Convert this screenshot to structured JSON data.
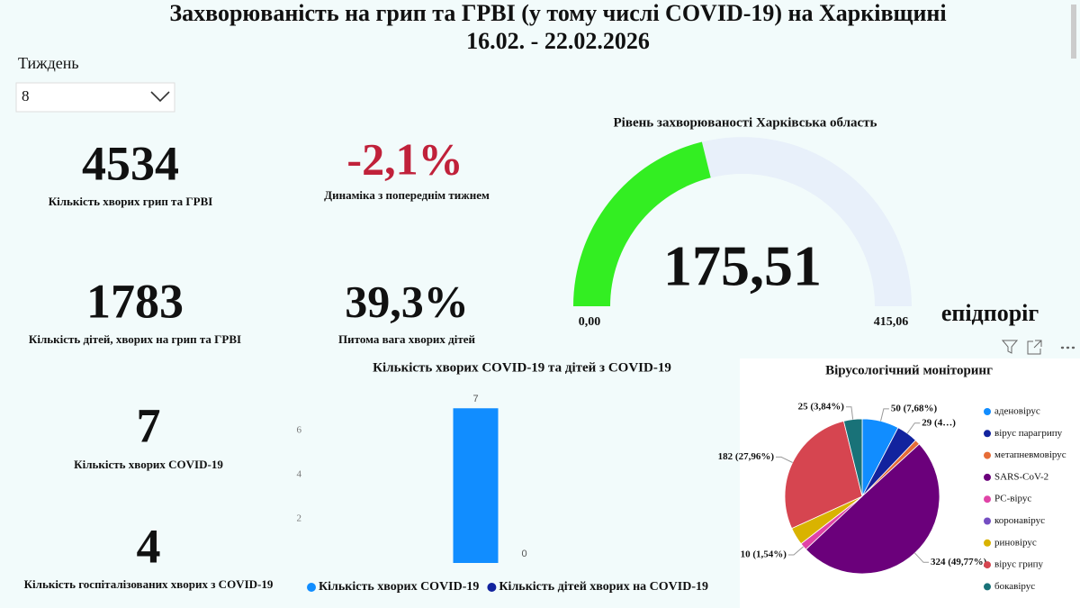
{
  "header": {
    "title_line1": "Захворюваність на грип та ГРВІ (у тому числі COVID-19) на Харківщині",
    "title_line2": "16.02. - 22.02.2026"
  },
  "filter": {
    "label": "Тиждень",
    "value": "8"
  },
  "kpis": [
    {
      "value": 4534,
      "label": "Кількість хворих грип та ГРВІ"
    },
    {
      "value": {
        "value": -2.1,
        "label": "-2,1%"
      },
      "label": "Динаміка з попереднім тижнем"
    },
    {
      "value": 1783,
      "label": "Кількість дітей, хворих на грип та ГРВІ"
    },
    {
      "value": {
        "value": 39.3,
        "label": "39,3%"
      },
      "label": "Питома вага хворих дітей"
    },
    {
      "value": 7,
      "label": "Кількість хворих COVID-19"
    },
    {
      "value": 4,
      "label": "Кількість госпіталізованих хворих з COVID-19"
    }
  ],
  "chart_data": [
    {
      "type": "gauge",
      "title": "Рівень захворюваності Харківська область",
      "value": {
        "value": 175.51,
        "label": "175,51"
      },
      "min": {
        "value": 0,
        "label": "0,00"
      },
      "max": {
        "value": 415.06,
        "label": "415,06"
      },
      "target_label": "епідпоріг",
      "color": "#33ee22",
      "track_color": "#e8f0fa"
    },
    {
      "type": "bar",
      "title": "Кількість хворих COVID-19 та дітей з COVID-19",
      "categories": [
        null
      ],
      "series": [
        {
          "name": "Кількість хворих COVID-19",
          "color": "#118dff",
          "values": [
            7
          ]
        },
        {
          "name": "Кількість дітей хворих на COVID-19",
          "color": "#12239e",
          "values": [
            0
          ]
        }
      ],
      "ylim": [
        0,
        7.5
      ],
      "yticks": [
        2,
        4,
        6
      ],
      "grid": false
    },
    {
      "type": "pie",
      "title": "Вірусологічний моніторинг",
      "categories": [
        "аденовірус",
        "вірус парагрипу",
        "метапневмовірус",
        "SARS-CoV-2",
        "РС-вірус",
        "коронавірус",
        "риновірус",
        "вірус грипу",
        "бокавірус"
      ],
      "colors": [
        "#118dff",
        "#12239e",
        "#e66c37",
        "#6b007b",
        "#e044a7",
        "#744ec2",
        "#d9b300",
        "#d64550",
        "#197278"
      ],
      "values": [
        50,
        29,
        7,
        324,
        10,
        0,
        24,
        182,
        25
      ],
      "value_labels": [
        "50 (7,68%)",
        "29 (4…)",
        null,
        "324 (49,77%)",
        "10 (1,54%)",
        null,
        null,
        "182 (27,96%)",
        "25 (3,84%)"
      ]
    }
  ]
}
